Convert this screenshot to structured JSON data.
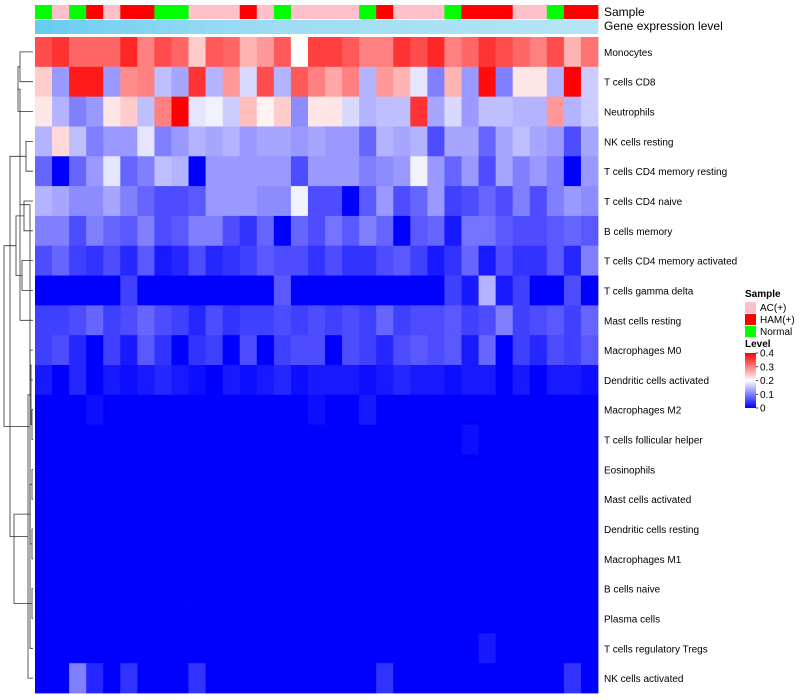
{
  "chart_data": {
    "type": "heatmap",
    "title": "",
    "annotation_tracks": [
      "Sample",
      "Gene expression level"
    ],
    "rows": [
      "Monocytes",
      "T cells CD8",
      "Neutrophils",
      "NK cells resting",
      "T cells CD4 memory resting",
      "T cells CD4 naive",
      "B cells memory",
      "T cells CD4 memory activated",
      "T cells gamma delta",
      "Mast cells resting",
      "Macrophages M0",
      "Dendritic cells activated",
      "Macrophages M2",
      "T cells follicular helper",
      "Eosinophils",
      "Mast cells activated",
      "Dendritic cells resting",
      "Macrophages M1",
      "B cells naive",
      "Plasma cells",
      "T cells regulatory  Tregs",
      "NK cells activated"
    ],
    "samples": [
      "N",
      "A",
      "N",
      "H",
      "A",
      "H",
      "H",
      "N",
      "N",
      "A",
      "A",
      "A",
      "H",
      "A",
      "N",
      "A",
      "A",
      "A",
      "A",
      "N",
      "H",
      "A",
      "A",
      "A",
      "N",
      "H",
      "H",
      "H",
      "A",
      "A",
      "N",
      "H",
      "H"
    ],
    "sample_legend": {
      "title": "Sample",
      "entries": [
        {
          "label": "AC(+)",
          "key": "A",
          "color": "#ffc0cb"
        },
        {
          "label": "HAM(+)",
          "key": "H",
          "color": "#ff0000"
        },
        {
          "label": "Normal",
          "key": "N",
          "color": "#00ff00"
        }
      ]
    },
    "expression_track": {
      "from": "#e0f2f8",
      "to": "#5bc8f0"
    },
    "level_legend": {
      "title": "Level",
      "ticks": [
        "0.4",
        "0.3",
        "0.2",
        "0.1",
        "0"
      ],
      "tick_values": [
        0.4,
        0.3,
        0.2,
        0.1,
        0
      ],
      "min": 0,
      "max": 0.4,
      "colors": {
        "low": "#0000ff",
        "mid": "#ffffff",
        "high": "#ff0000"
      }
    },
    "values": [
      [
        0.34,
        0.36,
        0.32,
        0.32,
        0.32,
        0.37,
        0.3,
        0.34,
        0.32,
        0.24,
        0.33,
        0.32,
        0.26,
        0.28,
        0.33,
        0.2,
        0.35,
        0.35,
        0.33,
        0.3,
        0.3,
        0.36,
        0.34,
        0.37,
        0.3,
        0.32,
        0.36,
        0.34,
        0.32,
        0.3,
        0.34,
        0.26,
        0.31
      ],
      [
        0.24,
        0.12,
        0.38,
        0.38,
        0.12,
        0.29,
        0.3,
        0.15,
        0.13,
        0.36,
        0.14,
        0.28,
        0.17,
        0.34,
        0.14,
        0.33,
        0.3,
        0.27,
        0.3,
        0.14,
        0.28,
        0.26,
        0.18,
        0.1,
        0.26,
        0.12,
        0.39,
        0.1,
        0.22,
        0.22,
        0.14,
        0.4,
        0.16
      ],
      [
        0.22,
        0.14,
        0.1,
        0.12,
        0.22,
        0.24,
        0.15,
        0.3,
        0.4,
        0.18,
        0.19,
        0.16,
        0.25,
        0.21,
        0.24,
        0.11,
        0.22,
        0.22,
        0.17,
        0.14,
        0.15,
        0.15,
        0.36,
        0.13,
        0.17,
        0.12,
        0.15,
        0.15,
        0.14,
        0.14,
        0.28,
        0.14,
        0.16
      ],
      [
        0.14,
        0.23,
        0.15,
        0.1,
        0.12,
        0.12,
        0.18,
        0.1,
        0.12,
        0.14,
        0.13,
        0.14,
        0.12,
        0.13,
        0.13,
        0.12,
        0.13,
        0.12,
        0.12,
        0.08,
        0.14,
        0.13,
        0.14,
        0.06,
        0.13,
        0.13,
        0.08,
        0.13,
        0.15,
        0.13,
        0.12,
        0.06,
        0.13
      ],
      [
        0.08,
        0.0,
        0.08,
        0.12,
        0.18,
        0.08,
        0.1,
        0.15,
        0.14,
        0.0,
        0.12,
        0.12,
        0.12,
        0.12,
        0.12,
        0.06,
        0.12,
        0.12,
        0.12,
        0.1,
        0.11,
        0.12,
        0.19,
        0.12,
        0.08,
        0.12,
        0.06,
        0.13,
        0.1,
        0.12,
        0.1,
        0.0,
        0.12
      ],
      [
        0.14,
        0.13,
        0.11,
        0.11,
        0.13,
        0.1,
        0.08,
        0.06,
        0.06,
        0.07,
        0.12,
        0.12,
        0.12,
        0.11,
        0.11,
        0.19,
        0.06,
        0.06,
        0.0,
        0.07,
        0.12,
        0.06,
        0.08,
        0.12,
        0.05,
        0.06,
        0.08,
        0.06,
        0.1,
        0.06,
        0.1,
        0.12,
        0.11
      ],
      [
        0.1,
        0.1,
        0.06,
        0.1,
        0.08,
        0.07,
        0.1,
        0.06,
        0.07,
        0.1,
        0.1,
        0.06,
        0.04,
        0.08,
        0.0,
        0.08,
        0.06,
        0.09,
        0.07,
        0.1,
        0.08,
        0.0,
        0.07,
        0.08,
        0.02,
        0.09,
        0.09,
        0.07,
        0.06,
        0.06,
        0.07,
        0.08,
        0.07
      ],
      [
        0.06,
        0.08,
        0.05,
        0.04,
        0.06,
        0.03,
        0.07,
        0.02,
        0.03,
        0.06,
        0.03,
        0.04,
        0.05,
        0.07,
        0.06,
        0.06,
        0.04,
        0.06,
        0.04,
        0.04,
        0.06,
        0.07,
        0.05,
        0.02,
        0.04,
        0.08,
        0.02,
        0.06,
        0.04,
        0.04,
        0.07,
        0.03,
        0.1
      ],
      [
        0.0,
        0.0,
        0.0,
        0.0,
        0.0,
        0.05,
        0.0,
        0.0,
        0.0,
        0.0,
        0.0,
        0.0,
        0.0,
        0.0,
        0.07,
        0.0,
        0.0,
        0.0,
        0.0,
        0.0,
        0.0,
        0.0,
        0.0,
        0.0,
        0.05,
        0.02,
        0.14,
        0.02,
        0.05,
        0.0,
        0.0,
        0.06,
        0.0
      ],
      [
        0.05,
        0.05,
        0.06,
        0.08,
        0.05,
        0.06,
        0.08,
        0.06,
        0.05,
        0.03,
        0.06,
        0.04,
        0.05,
        0.05,
        0.06,
        0.05,
        0.06,
        0.05,
        0.06,
        0.05,
        0.08,
        0.05,
        0.06,
        0.06,
        0.07,
        0.05,
        0.06,
        0.1,
        0.05,
        0.06,
        0.07,
        0.05,
        0.08
      ],
      [
        0.05,
        0.06,
        0.03,
        0.0,
        0.05,
        0.02,
        0.07,
        0.04,
        0.0,
        0.04,
        0.05,
        0.0,
        0.06,
        0.0,
        0.05,
        0.06,
        0.06,
        0.0,
        0.06,
        0.05,
        0.03,
        0.06,
        0.07,
        0.06,
        0.07,
        0.02,
        0.08,
        0.0,
        0.05,
        0.03,
        0.06,
        0.05,
        0.07
      ],
      [
        0.02,
        0.0,
        0.03,
        0.0,
        0.02,
        0.01,
        0.02,
        0.03,
        0.02,
        0.01,
        0.0,
        0.02,
        0.01,
        0.02,
        0.03,
        0.01,
        0.02,
        0.02,
        0.02,
        0.01,
        0.02,
        0.03,
        0.02,
        0.02,
        0.01,
        0.02,
        0.02,
        0.0,
        0.02,
        0.0,
        0.02,
        0.02,
        0.01
      ],
      [
        0.0,
        0.0,
        0.0,
        0.01,
        0.0,
        0.0,
        0.0,
        0.0,
        0.0,
        0.0,
        0.0,
        0.0,
        0.0,
        0.0,
        0.0,
        0.0,
        0.01,
        0.0,
        0.0,
        0.02,
        0.0,
        0.0,
        0.0,
        0.0,
        0.0,
        0.0,
        0.0,
        0.0,
        0.0,
        0.0,
        0.0,
        0.0,
        0.0
      ],
      [
        0.0,
        0.0,
        0.0,
        0.0,
        0.0,
        0.0,
        0.0,
        0.0,
        0.0,
        0.0,
        0.0,
        0.0,
        0.0,
        0.0,
        0.0,
        0.0,
        0.0,
        0.0,
        0.0,
        0.0,
        0.0,
        0.0,
        0.0,
        0.0,
        0.0,
        0.01,
        0.0,
        0.0,
        0.0,
        0.0,
        0.0,
        0.0,
        0.0
      ],
      [
        0.0,
        0.0,
        0.0,
        0.0,
        0.0,
        0.0,
        0.0,
        0.0,
        0.0,
        0.0,
        0.0,
        0.0,
        0.0,
        0.0,
        0.0,
        0.0,
        0.0,
        0.0,
        0.0,
        0.0,
        0.0,
        0.0,
        0.0,
        0.0,
        0.0,
        0.0,
        0.0,
        0.0,
        0.0,
        0.0,
        0.0,
        0.0,
        0.0
      ],
      [
        0.0,
        0.0,
        0.0,
        0.0,
        0.0,
        0.0,
        0.0,
        0.0,
        0.0,
        0.0,
        0.0,
        0.0,
        0.0,
        0.0,
        0.0,
        0.0,
        0.0,
        0.0,
        0.0,
        0.0,
        0.0,
        0.0,
        0.0,
        0.0,
        0.0,
        0.0,
        0.0,
        0.0,
        0.0,
        0.0,
        0.0,
        0.0,
        0.0
      ],
      [
        0.0,
        0.0,
        0.0,
        0.0,
        0.0,
        0.0,
        0.0,
        0.0,
        0.0,
        0.0,
        0.0,
        0.0,
        0.0,
        0.0,
        0.0,
        0.0,
        0.0,
        0.0,
        0.0,
        0.0,
        0.0,
        0.0,
        0.0,
        0.0,
        0.0,
        0.0,
        0.0,
        0.0,
        0.0,
        0.0,
        0.0,
        0.0,
        0.0
      ],
      [
        0.0,
        0.0,
        0.0,
        0.0,
        0.0,
        0.0,
        0.0,
        0.0,
        0.0,
        0.0,
        0.0,
        0.0,
        0.0,
        0.0,
        0.0,
        0.0,
        0.0,
        0.0,
        0.0,
        0.0,
        0.0,
        0.0,
        0.0,
        0.0,
        0.0,
        0.0,
        0.0,
        0.0,
        0.0,
        0.0,
        0.0,
        0.0,
        0.0
      ],
      [
        0.0,
        0.0,
        0.0,
        0.0,
        0.0,
        0.0,
        0.0,
        0.0,
        0.0,
        0.0,
        0.0,
        0.0,
        0.0,
        0.0,
        0.0,
        0.0,
        0.0,
        0.0,
        0.0,
        0.0,
        0.0,
        0.0,
        0.0,
        0.0,
        0.0,
        0.0,
        0.0,
        0.0,
        0.0,
        0.0,
        0.0,
        0.0,
        0.0
      ],
      [
        0.0,
        0.0,
        0.0,
        0.0,
        0.0,
        0.0,
        0.0,
        0.0,
        0.0,
        0.0,
        0.0,
        0.0,
        0.0,
        0.0,
        0.0,
        0.0,
        0.0,
        0.0,
        0.0,
        0.0,
        0.0,
        0.0,
        0.0,
        0.0,
        0.0,
        0.0,
        0.0,
        0.0,
        0.0,
        0.0,
        0.0,
        0.0,
        0.0
      ],
      [
        0.0,
        0.0,
        0.0,
        0.0,
        0.0,
        0.0,
        0.0,
        0.0,
        0.0,
        0.0,
        0.0,
        0.0,
        0.0,
        0.0,
        0.0,
        0.0,
        0.0,
        0.0,
        0.0,
        0.0,
        0.0,
        0.0,
        0.0,
        0.0,
        0.0,
        0.0,
        0.02,
        0.0,
        0.0,
        0.0,
        0.0,
        0.0,
        0.0
      ],
      [
        0.0,
        0.0,
        0.1,
        0.03,
        0.0,
        0.04,
        0.0,
        0.0,
        0.0,
        0.04,
        0.0,
        0.0,
        0.0,
        0.0,
        0.0,
        0.0,
        0.0,
        0.0,
        0.0,
        0.0,
        0.04,
        0.0,
        0.0,
        0.0,
        0.0,
        0.0,
        0.0,
        0.0,
        0.0,
        0.0,
        0.0,
        0.04,
        0.0
      ]
    ],
    "expression_values": [
      0.9,
      0.86,
      0.82,
      0.78,
      0.75,
      0.72,
      0.69,
      0.66,
      0.63,
      0.6,
      0.58,
      0.56,
      0.54,
      0.52,
      0.5,
      0.49,
      0.48,
      0.47,
      0.46,
      0.45,
      0.44,
      0.43,
      0.42,
      0.41,
      0.4,
      0.39,
      0.38,
      0.37,
      0.36,
      0.35,
      0.34,
      0.33,
      0.32
    ]
  }
}
